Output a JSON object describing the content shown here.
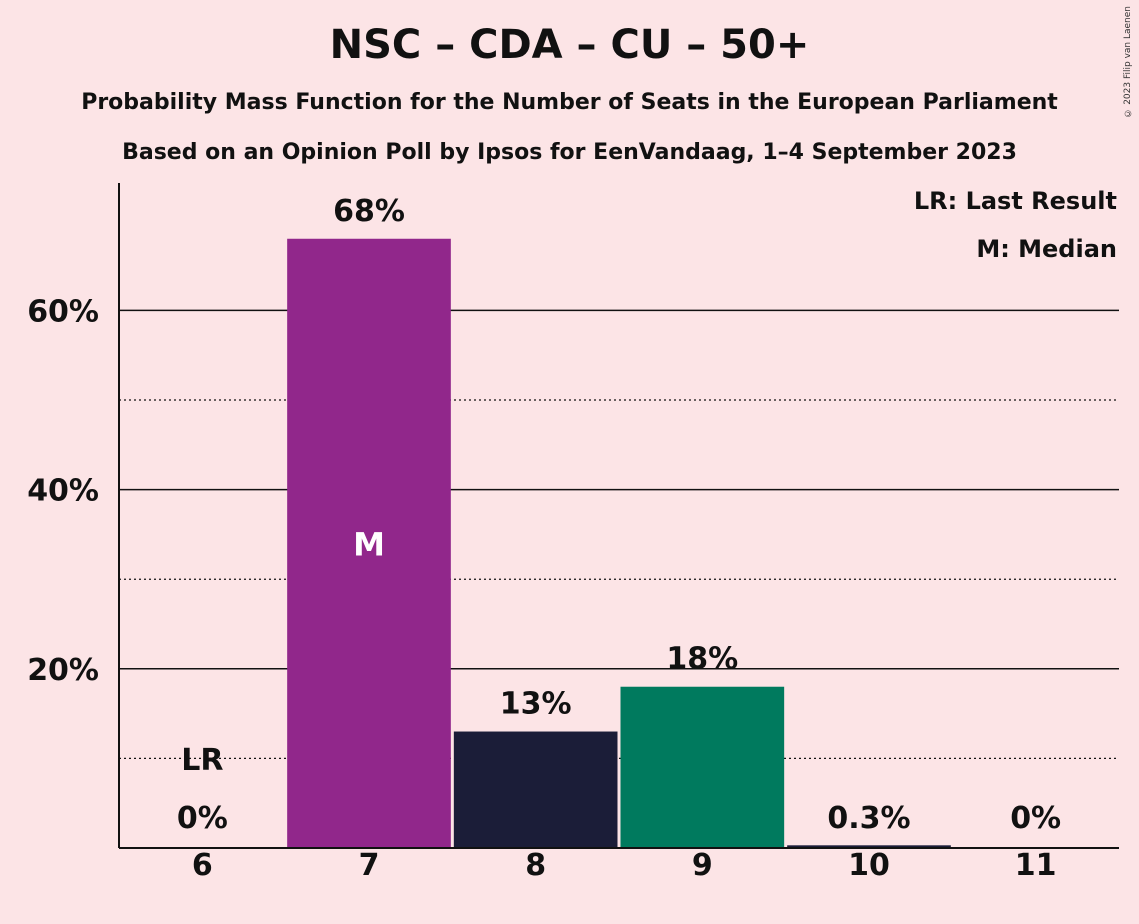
{
  "title": "NSC – CDA – CU – 50+",
  "subtitle": "Probability Mass Function for the Number of Seats in the European Parliament",
  "subtitle2": "Based on an Opinion Poll by Ipsos for EenVandaag, 1–4 September 2023",
  "credit": "© 2023 Filip van Laenen",
  "legend": {
    "last_result": "LR: Last Result",
    "median": "M: Median"
  },
  "colors": {
    "background": "#fce4e6",
    "median_bar": "#91278b",
    "seat8_bar": "#1b1d38",
    "seat9_bar": "#007a5e",
    "tail_bar": "#1b1d38"
  },
  "chart_data": {
    "type": "bar",
    "categories": [
      "6",
      "7",
      "8",
      "9",
      "10",
      "11"
    ],
    "values": [
      0,
      68,
      13,
      18,
      0.3,
      0
    ],
    "value_labels": [
      "0%",
      "68%",
      "13%",
      "18%",
      "0.3%",
      "0%"
    ],
    "bar_colors": [
      "#1b1d38",
      "#91278b",
      "#1b1d38",
      "#007a5e",
      "#1b1d38",
      "#1b1d38"
    ],
    "ylim": [
      0,
      74
    ],
    "yticks": [
      20,
      40,
      60
    ],
    "ytick_labels": [
      "20%",
      "40%",
      "60%"
    ],
    "minor_gridlines": [
      10,
      30,
      50
    ],
    "median_category": "7",
    "median_marker": "M",
    "last_result_category": "6",
    "last_result_marker": "LR",
    "legend_position": "top-right",
    "grid": true
  }
}
